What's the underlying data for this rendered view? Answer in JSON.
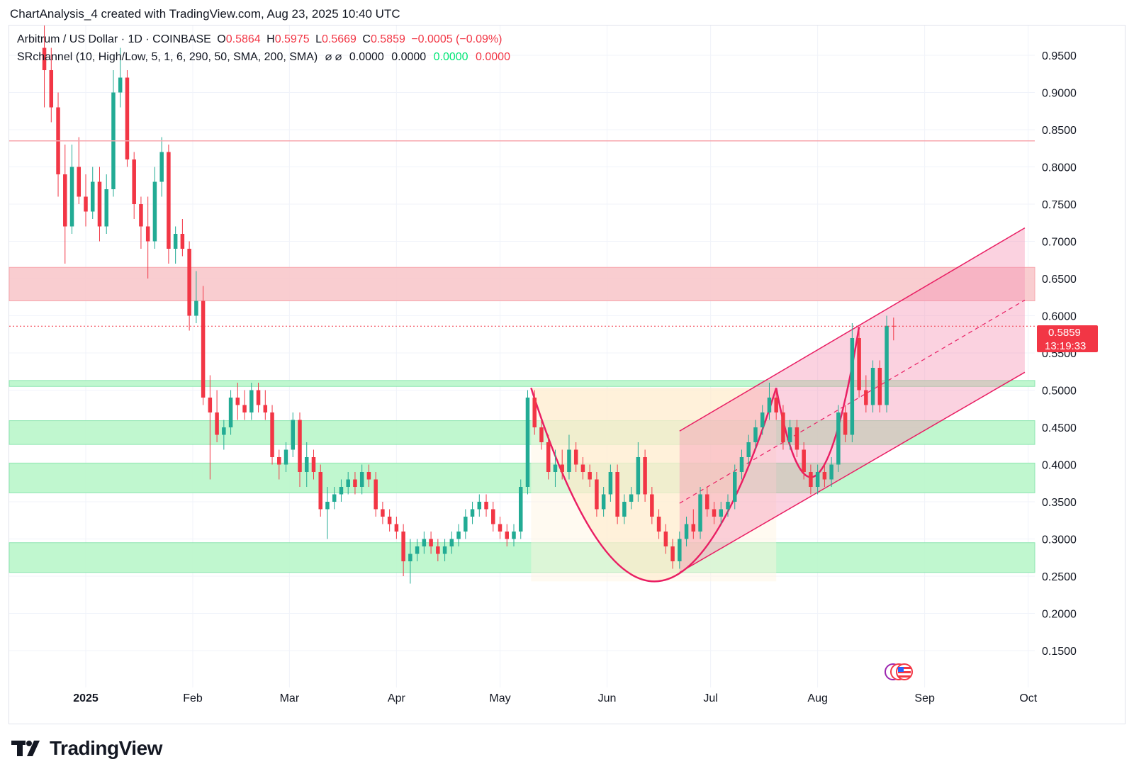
{
  "header": {
    "text": "ChartAnalysis_4 created with TradingView.com, Aug 23, 2025 10:40 UTC"
  },
  "legend": {
    "symbol": "Arbitrum / US Dollar · 1D · COINBASE",
    "o_label": "O",
    "o_value": "0.5864",
    "h_label": "H",
    "h_value": "0.5975",
    "l_label": "L",
    "l_value": "0.5669",
    "c_label": "C",
    "c_value": "0.5859",
    "change": "−0.0005 (−0.09%)",
    "indicator": "SRchannel (10, High/Low, 5, 1, 6, 290, 50, SMA, 200, SMA)",
    "indicator_icons": "⌀ ⌀",
    "ind_v1": "0.0000",
    "ind_v2": "0.0000",
    "ind_v3": "0.0000",
    "ind_v4": "0.0000"
  },
  "price_badge": {
    "price": "0.5859",
    "countdown": "13:19:33"
  },
  "footer": {
    "brand": "TradingView"
  },
  "colors": {
    "up": "#22ab94",
    "down": "#f23645",
    "pattern": "#e91e63",
    "support_zone": "#b9f6ca",
    "resistance_zone": "#f8c4c8"
  },
  "chart_data": {
    "type": "candlestick",
    "title": "Arbitrum / US Dollar · 1D · COINBASE",
    "ylim": [
      0.11,
      0.99
    ],
    "y_ticks": [
      "0.1500",
      "0.2000",
      "0.2500",
      "0.3000",
      "0.3500",
      "0.4000",
      "0.4500",
      "0.5000",
      "0.5500",
      "0.6000",
      "0.6500",
      "0.7000",
      "0.7500",
      "0.8000",
      "0.8500",
      "0.9000",
      "0.9500"
    ],
    "x_labels": [
      {
        "label": "2025",
        "date": "2025-01-01",
        "bold": true
      },
      {
        "label": "Feb",
        "date": "2025-02-01"
      },
      {
        "label": "Mar",
        "date": "2025-03-01"
      },
      {
        "label": "Apr",
        "date": "2025-04-01"
      },
      {
        "label": "May",
        "date": "2025-05-01"
      },
      {
        "label": "Jun",
        "date": "2025-06-01"
      },
      {
        "label": "Jul",
        "date": "2025-07-01"
      },
      {
        "label": "Aug",
        "date": "2025-08-01"
      },
      {
        "label": "Sep",
        "date": "2025-09-01"
      },
      {
        "label": "Oct",
        "date": "2025-10-01"
      }
    ],
    "last_price": 0.5859,
    "resistance_line": 0.835,
    "zones": [
      {
        "type": "resistance",
        "from": 0.62,
        "to": 0.665
      },
      {
        "type": "support",
        "from": 0.505,
        "to": 0.513
      },
      {
        "type": "support",
        "from": 0.427,
        "to": 0.459
      },
      {
        "type": "support",
        "from": 0.362,
        "to": 0.402
      },
      {
        "type": "support",
        "from": 0.255,
        "to": 0.295
      }
    ],
    "cup_pattern": {
      "start_date": "2025-05-10",
      "start_price": 0.503,
      "bottom_date": "2025-06-15",
      "bottom_price": 0.243,
      "end_date": "2025-07-20",
      "end_price": 0.503
    },
    "handle_pattern": {
      "start_date": "2025-07-20",
      "bottom_date": "2025-08-01",
      "bottom_price": 0.358,
      "end_date": "2025-08-13",
      "end_price": 0.585
    },
    "channel": {
      "start_date": "2025-06-22",
      "end_date": "2025-09-30",
      "upper": [
        0.445,
        0.718
      ],
      "mid": [
        0.348,
        0.621
      ],
      "lower": [
        0.255,
        0.524
      ]
    },
    "candles": [
      {
        "d": "2024-12-20",
        "o": 0.96,
        "h": 0.99,
        "l": 0.88,
        "c": 0.93
      },
      {
        "d": "2024-12-22",
        "o": 0.93,
        "h": 0.96,
        "l": 0.86,
        "c": 0.88
      },
      {
        "d": "2024-12-24",
        "o": 0.88,
        "h": 0.9,
        "l": 0.76,
        "c": 0.79
      },
      {
        "d": "2024-12-26",
        "o": 0.79,
        "h": 0.83,
        "l": 0.67,
        "c": 0.72
      },
      {
        "d": "2024-12-28",
        "o": 0.72,
        "h": 0.83,
        "l": 0.71,
        "c": 0.8
      },
      {
        "d": "2024-12-30",
        "o": 0.8,
        "h": 0.84,
        "l": 0.75,
        "c": 0.76
      },
      {
        "d": "2025-01-01",
        "o": 0.76,
        "h": 0.79,
        "l": 0.72,
        "c": 0.74
      },
      {
        "d": "2025-01-03",
        "o": 0.74,
        "h": 0.8,
        "l": 0.73,
        "c": 0.78
      },
      {
        "d": "2025-01-05",
        "o": 0.78,
        "h": 0.8,
        "l": 0.7,
        "c": 0.72
      },
      {
        "d": "2025-01-07",
        "o": 0.72,
        "h": 0.79,
        "l": 0.71,
        "c": 0.77
      },
      {
        "d": "2025-01-09",
        "o": 0.77,
        "h": 0.93,
        "l": 0.76,
        "c": 0.9
      },
      {
        "d": "2025-01-11",
        "o": 0.9,
        "h": 0.96,
        "l": 0.88,
        "c": 0.92
      },
      {
        "d": "2025-01-13",
        "o": 0.92,
        "h": 0.93,
        "l": 0.8,
        "c": 0.81
      },
      {
        "d": "2025-01-15",
        "o": 0.81,
        "h": 0.82,
        "l": 0.73,
        "c": 0.75
      },
      {
        "d": "2025-01-17",
        "o": 0.75,
        "h": 0.76,
        "l": 0.69,
        "c": 0.72
      },
      {
        "d": "2025-01-19",
        "o": 0.72,
        "h": 0.76,
        "l": 0.65,
        "c": 0.7
      },
      {
        "d": "2025-01-21",
        "o": 0.7,
        "h": 0.8,
        "l": 0.69,
        "c": 0.78
      },
      {
        "d": "2025-01-23",
        "o": 0.78,
        "h": 0.84,
        "l": 0.76,
        "c": 0.82
      },
      {
        "d": "2025-01-25",
        "o": 0.82,
        "h": 0.83,
        "l": 0.67,
        "c": 0.69
      },
      {
        "d": "2025-01-27",
        "o": 0.69,
        "h": 0.72,
        "l": 0.67,
        "c": 0.71
      },
      {
        "d": "2025-01-29",
        "o": 0.71,
        "h": 0.73,
        "l": 0.68,
        "c": 0.69
      },
      {
        "d": "2025-01-31",
        "o": 0.69,
        "h": 0.7,
        "l": 0.58,
        "c": 0.6
      },
      {
        "d": "2025-02-02",
        "o": 0.6,
        "h": 0.66,
        "l": 0.59,
        "c": 0.62
      },
      {
        "d": "2025-02-04",
        "o": 0.62,
        "h": 0.64,
        "l": 0.48,
        "c": 0.49
      },
      {
        "d": "2025-02-06",
        "o": 0.49,
        "h": 0.52,
        "l": 0.38,
        "c": 0.47
      },
      {
        "d": "2025-02-08",
        "o": 0.47,
        "h": 0.5,
        "l": 0.43,
        "c": 0.44
      },
      {
        "d": "2025-02-10",
        "o": 0.44,
        "h": 0.46,
        "l": 0.42,
        "c": 0.45
      },
      {
        "d": "2025-02-12",
        "o": 0.45,
        "h": 0.5,
        "l": 0.44,
        "c": 0.49
      },
      {
        "d": "2025-02-14",
        "o": 0.49,
        "h": 0.51,
        "l": 0.46,
        "c": 0.48
      },
      {
        "d": "2025-02-16",
        "o": 0.48,
        "h": 0.5,
        "l": 0.46,
        "c": 0.47
      },
      {
        "d": "2025-02-18",
        "o": 0.47,
        "h": 0.51,
        "l": 0.46,
        "c": 0.5
      },
      {
        "d": "2025-02-20",
        "o": 0.5,
        "h": 0.51,
        "l": 0.47,
        "c": 0.48
      },
      {
        "d": "2025-02-22",
        "o": 0.48,
        "h": 0.5,
        "l": 0.46,
        "c": 0.47
      },
      {
        "d": "2025-02-24",
        "o": 0.47,
        "h": 0.48,
        "l": 0.4,
        "c": 0.41
      },
      {
        "d": "2025-02-26",
        "o": 0.41,
        "h": 0.42,
        "l": 0.38,
        "c": 0.4
      },
      {
        "d": "2025-02-28",
        "o": 0.4,
        "h": 0.43,
        "l": 0.39,
        "c": 0.42
      },
      {
        "d": "2025-03-02",
        "o": 0.42,
        "h": 0.47,
        "l": 0.41,
        "c": 0.46
      },
      {
        "d": "2025-03-04",
        "o": 0.46,
        "h": 0.47,
        "l": 0.37,
        "c": 0.39
      },
      {
        "d": "2025-03-06",
        "o": 0.39,
        "h": 0.43,
        "l": 0.37,
        "c": 0.41
      },
      {
        "d": "2025-03-08",
        "o": 0.41,
        "h": 0.42,
        "l": 0.38,
        "c": 0.39
      },
      {
        "d": "2025-03-10",
        "o": 0.39,
        "h": 0.4,
        "l": 0.33,
        "c": 0.34
      },
      {
        "d": "2025-03-12",
        "o": 0.34,
        "h": 0.37,
        "l": 0.3,
        "c": 0.35
      },
      {
        "d": "2025-03-14",
        "o": 0.35,
        "h": 0.37,
        "l": 0.34,
        "c": 0.36
      },
      {
        "d": "2025-03-16",
        "o": 0.36,
        "h": 0.38,
        "l": 0.35,
        "c": 0.37
      },
      {
        "d": "2025-03-18",
        "o": 0.37,
        "h": 0.39,
        "l": 0.36,
        "c": 0.38
      },
      {
        "d": "2025-03-20",
        "o": 0.38,
        "h": 0.39,
        "l": 0.36,
        "c": 0.37
      },
      {
        "d": "2025-03-22",
        "o": 0.37,
        "h": 0.4,
        "l": 0.36,
        "c": 0.39
      },
      {
        "d": "2025-03-24",
        "o": 0.39,
        "h": 0.4,
        "l": 0.37,
        "c": 0.38
      },
      {
        "d": "2025-03-26",
        "o": 0.38,
        "h": 0.39,
        "l": 0.33,
        "c": 0.34
      },
      {
        "d": "2025-03-28",
        "o": 0.34,
        "h": 0.35,
        "l": 0.32,
        "c": 0.33
      },
      {
        "d": "2025-03-30",
        "o": 0.33,
        "h": 0.34,
        "l": 0.31,
        "c": 0.32
      },
      {
        "d": "2025-04-01",
        "o": 0.32,
        "h": 0.33,
        "l": 0.3,
        "c": 0.31
      },
      {
        "d": "2025-04-03",
        "o": 0.31,
        "h": 0.32,
        "l": 0.25,
        "c": 0.27
      },
      {
        "d": "2025-04-05",
        "o": 0.27,
        "h": 0.3,
        "l": 0.24,
        "c": 0.28
      },
      {
        "d": "2025-04-07",
        "o": 0.28,
        "h": 0.3,
        "l": 0.27,
        "c": 0.29
      },
      {
        "d": "2025-04-09",
        "o": 0.29,
        "h": 0.31,
        "l": 0.28,
        "c": 0.3
      },
      {
        "d": "2025-04-11",
        "o": 0.3,
        "h": 0.31,
        "l": 0.28,
        "c": 0.29
      },
      {
        "d": "2025-04-13",
        "o": 0.29,
        "h": 0.3,
        "l": 0.27,
        "c": 0.28
      },
      {
        "d": "2025-04-15",
        "o": 0.28,
        "h": 0.3,
        "l": 0.27,
        "c": 0.29
      },
      {
        "d": "2025-04-17",
        "o": 0.29,
        "h": 0.31,
        "l": 0.28,
        "c": 0.3
      },
      {
        "d": "2025-04-19",
        "o": 0.3,
        "h": 0.32,
        "l": 0.29,
        "c": 0.31
      },
      {
        "d": "2025-04-21",
        "o": 0.31,
        "h": 0.34,
        "l": 0.3,
        "c": 0.33
      },
      {
        "d": "2025-04-23",
        "o": 0.33,
        "h": 0.35,
        "l": 0.32,
        "c": 0.34
      },
      {
        "d": "2025-04-25",
        "o": 0.34,
        "h": 0.36,
        "l": 0.33,
        "c": 0.35
      },
      {
        "d": "2025-04-27",
        "o": 0.35,
        "h": 0.36,
        "l": 0.33,
        "c": 0.34
      },
      {
        "d": "2025-04-29",
        "o": 0.34,
        "h": 0.35,
        "l": 0.31,
        "c": 0.32
      },
      {
        "d": "2025-05-01",
        "o": 0.32,
        "h": 0.33,
        "l": 0.3,
        "c": 0.31
      },
      {
        "d": "2025-05-03",
        "o": 0.31,
        "h": 0.32,
        "l": 0.29,
        "c": 0.3
      },
      {
        "d": "2025-05-05",
        "o": 0.3,
        "h": 0.32,
        "l": 0.29,
        "c": 0.31
      },
      {
        "d": "2025-05-07",
        "o": 0.31,
        "h": 0.38,
        "l": 0.3,
        "c": 0.37
      },
      {
        "d": "2025-05-09",
        "o": 0.37,
        "h": 0.5,
        "l": 0.36,
        "c": 0.49
      },
      {
        "d": "2025-05-11",
        "o": 0.49,
        "h": 0.5,
        "l": 0.44,
        "c": 0.45
      },
      {
        "d": "2025-05-13",
        "o": 0.45,
        "h": 0.46,
        "l": 0.42,
        "c": 0.43
      },
      {
        "d": "2025-05-15",
        "o": 0.43,
        "h": 0.44,
        "l": 0.38,
        "c": 0.39
      },
      {
        "d": "2025-05-17",
        "o": 0.39,
        "h": 0.42,
        "l": 0.37,
        "c": 0.4
      },
      {
        "d": "2025-05-19",
        "o": 0.4,
        "h": 0.42,
        "l": 0.38,
        "c": 0.39
      },
      {
        "d": "2025-05-21",
        "o": 0.39,
        "h": 0.44,
        "l": 0.38,
        "c": 0.42
      },
      {
        "d": "2025-05-23",
        "o": 0.42,
        "h": 0.43,
        "l": 0.39,
        "c": 0.4
      },
      {
        "d": "2025-05-25",
        "o": 0.4,
        "h": 0.41,
        "l": 0.38,
        "c": 0.39
      },
      {
        "d": "2025-05-27",
        "o": 0.39,
        "h": 0.4,
        "l": 0.37,
        "c": 0.38
      },
      {
        "d": "2025-05-29",
        "o": 0.38,
        "h": 0.39,
        "l": 0.33,
        "c": 0.34
      },
      {
        "d": "2025-05-31",
        "o": 0.34,
        "h": 0.37,
        "l": 0.33,
        "c": 0.36
      },
      {
        "d": "2025-06-02",
        "o": 0.36,
        "h": 0.4,
        "l": 0.35,
        "c": 0.39
      },
      {
        "d": "2025-06-04",
        "o": 0.39,
        "h": 0.4,
        "l": 0.32,
        "c": 0.33
      },
      {
        "d": "2025-06-06",
        "o": 0.33,
        "h": 0.36,
        "l": 0.32,
        "c": 0.35
      },
      {
        "d": "2025-06-08",
        "o": 0.35,
        "h": 0.37,
        "l": 0.34,
        "c": 0.36
      },
      {
        "d": "2025-06-10",
        "o": 0.36,
        "h": 0.43,
        "l": 0.35,
        "c": 0.41
      },
      {
        "d": "2025-06-12",
        "o": 0.41,
        "h": 0.42,
        "l": 0.35,
        "c": 0.36
      },
      {
        "d": "2025-06-14",
        "o": 0.36,
        "h": 0.37,
        "l": 0.32,
        "c": 0.33
      },
      {
        "d": "2025-06-16",
        "o": 0.33,
        "h": 0.34,
        "l": 0.3,
        "c": 0.31
      },
      {
        "d": "2025-06-18",
        "o": 0.31,
        "h": 0.32,
        "l": 0.28,
        "c": 0.29
      },
      {
        "d": "2025-06-20",
        "o": 0.29,
        "h": 0.3,
        "l": 0.26,
        "c": 0.27
      },
      {
        "d": "2025-06-22",
        "o": 0.27,
        "h": 0.31,
        "l": 0.26,
        "c": 0.3
      },
      {
        "d": "2025-06-24",
        "o": 0.3,
        "h": 0.33,
        "l": 0.29,
        "c": 0.32
      },
      {
        "d": "2025-06-26",
        "o": 0.32,
        "h": 0.34,
        "l": 0.3,
        "c": 0.31
      },
      {
        "d": "2025-06-28",
        "o": 0.31,
        "h": 0.37,
        "l": 0.3,
        "c": 0.36
      },
      {
        "d": "2025-06-30",
        "o": 0.36,
        "h": 0.37,
        "l": 0.33,
        "c": 0.34
      },
      {
        "d": "2025-07-02",
        "o": 0.34,
        "h": 0.35,
        "l": 0.32,
        "c": 0.33
      },
      {
        "d": "2025-07-04",
        "o": 0.33,
        "h": 0.35,
        "l": 0.32,
        "c": 0.34
      },
      {
        "d": "2025-07-06",
        "o": 0.34,
        "h": 0.36,
        "l": 0.33,
        "c": 0.35
      },
      {
        "d": "2025-07-08",
        "o": 0.35,
        "h": 0.4,
        "l": 0.34,
        "c": 0.39
      },
      {
        "d": "2025-07-10",
        "o": 0.39,
        "h": 0.42,
        "l": 0.38,
        "c": 0.41
      },
      {
        "d": "2025-07-12",
        "o": 0.41,
        "h": 0.44,
        "l": 0.4,
        "c": 0.43
      },
      {
        "d": "2025-07-14",
        "o": 0.43,
        "h": 0.46,
        "l": 0.42,
        "c": 0.45
      },
      {
        "d": "2025-07-16",
        "o": 0.45,
        "h": 0.48,
        "l": 0.44,
        "c": 0.47
      },
      {
        "d": "2025-07-18",
        "o": 0.47,
        "h": 0.51,
        "l": 0.46,
        "c": 0.49
      },
      {
        "d": "2025-07-20",
        "o": 0.49,
        "h": 0.5,
        "l": 0.46,
        "c": 0.47
      },
      {
        "d": "2025-07-22",
        "o": 0.47,
        "h": 0.48,
        "l": 0.42,
        "c": 0.43
      },
      {
        "d": "2025-07-24",
        "o": 0.43,
        "h": 0.46,
        "l": 0.42,
        "c": 0.45
      },
      {
        "d": "2025-07-26",
        "o": 0.45,
        "h": 0.46,
        "l": 0.41,
        "c": 0.42
      },
      {
        "d": "2025-07-28",
        "o": 0.42,
        "h": 0.43,
        "l": 0.38,
        "c": 0.39
      },
      {
        "d": "2025-07-30",
        "o": 0.39,
        "h": 0.4,
        "l": 0.36,
        "c": 0.37
      },
      {
        "d": "2025-08-01",
        "o": 0.37,
        "h": 0.4,
        "l": 0.36,
        "c": 0.39
      },
      {
        "d": "2025-08-03",
        "o": 0.39,
        "h": 0.4,
        "l": 0.37,
        "c": 0.38
      },
      {
        "d": "2025-08-05",
        "o": 0.38,
        "h": 0.41,
        "l": 0.37,
        "c": 0.4
      },
      {
        "d": "2025-08-07",
        "o": 0.4,
        "h": 0.48,
        "l": 0.39,
        "c": 0.47
      },
      {
        "d": "2025-08-09",
        "o": 0.47,
        "h": 0.48,
        "l": 0.43,
        "c": 0.44
      },
      {
        "d": "2025-08-11",
        "o": 0.44,
        "h": 0.59,
        "l": 0.43,
        "c": 0.57
      },
      {
        "d": "2025-08-13",
        "o": 0.57,
        "h": 0.58,
        "l": 0.49,
        "c": 0.5
      },
      {
        "d": "2025-08-15",
        "o": 0.5,
        "h": 0.52,
        "l": 0.47,
        "c": 0.48
      },
      {
        "d": "2025-08-17",
        "o": 0.48,
        "h": 0.54,
        "l": 0.47,
        "c": 0.53
      },
      {
        "d": "2025-08-19",
        "o": 0.53,
        "h": 0.54,
        "l": 0.47,
        "c": 0.48
      },
      {
        "d": "2025-08-21",
        "o": 0.48,
        "h": 0.6,
        "l": 0.47,
        "c": 0.5864
      },
      {
        "d": "2025-08-23",
        "o": 0.5864,
        "h": 0.5975,
        "l": 0.5669,
        "c": 0.5859
      }
    ]
  }
}
